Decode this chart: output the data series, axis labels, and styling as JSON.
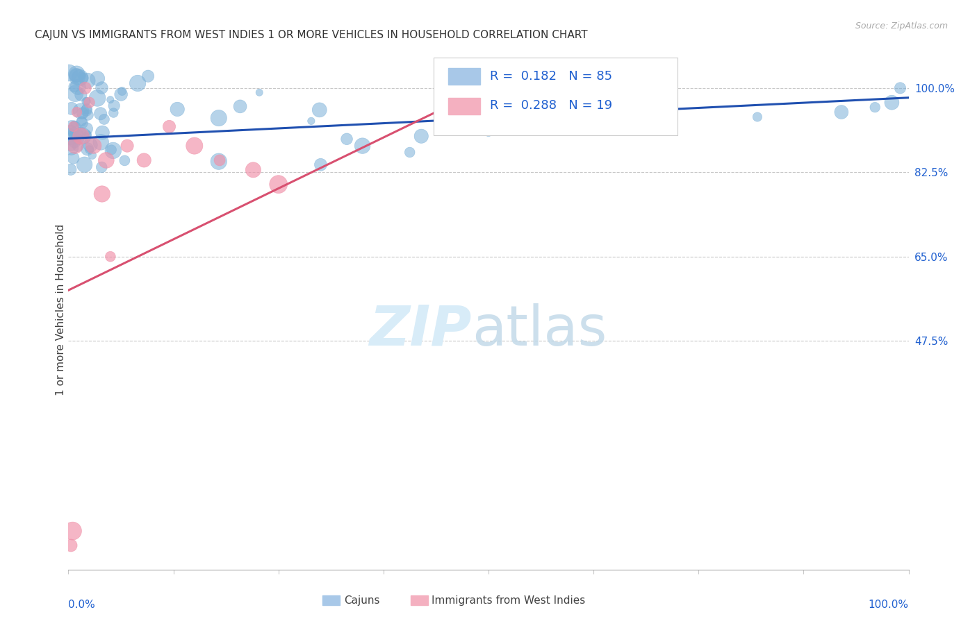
{
  "title": "CAJUN VS IMMIGRANTS FROM WEST INDIES 1 OR MORE VEHICLES IN HOUSEHOLD CORRELATION CHART",
  "source": "Source: ZipAtlas.com",
  "ylabel": "1 or more Vehicles in Household",
  "ytick_values": [
    0.475,
    0.65,
    0.825,
    1.0
  ],
  "ytick_labels": [
    "47.5%",
    "65.0%",
    "82.5%",
    "100.0%"
  ],
  "xlim": [
    0.0,
    1.0
  ],
  "ylim": [
    0.0,
    1.08
  ],
  "cajun_color": "#7ab0d8",
  "wi_color": "#f090a8",
  "trend_blue": "#2050b0",
  "trend_pink": "#d85070",
  "legend_blue_fill": "#a8c8e8",
  "legend_pink_fill": "#f4b0c0",
  "legend_text_color": "#2060d0",
  "axis_label_color": "#2060d0",
  "grid_color": "#c8c8c8",
  "blue_trend_x0": 0.0,
  "blue_trend_y0": 0.895,
  "blue_trend_x1": 1.0,
  "blue_trend_y1": 0.98,
  "pink_trend_x0": 0.0,
  "pink_trend_y0": 0.58,
  "pink_trend_x1": 0.52,
  "pink_trend_y1": 1.02
}
